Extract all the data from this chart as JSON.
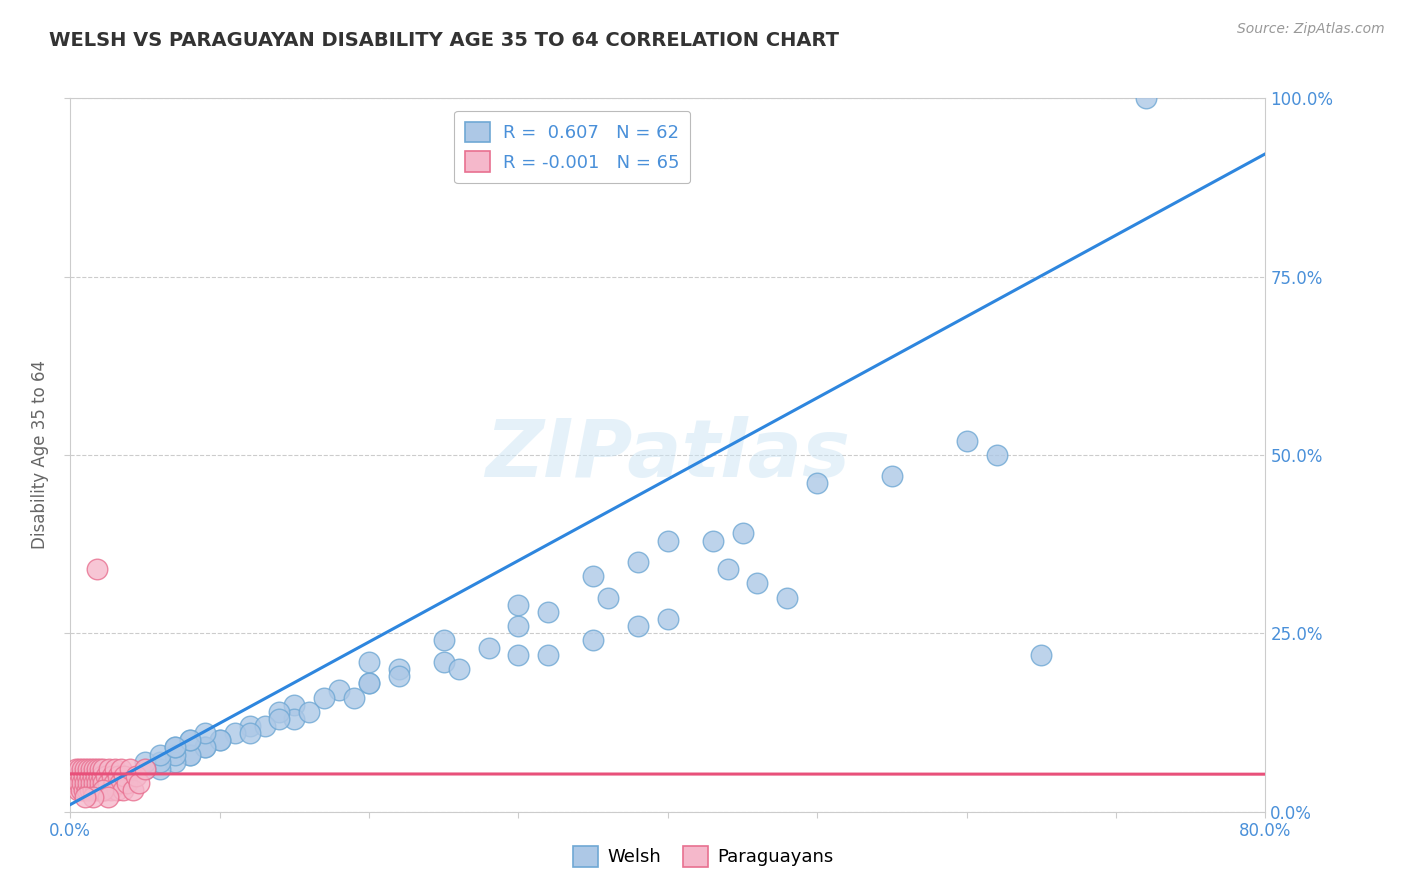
{
  "title": "WELSH VS PARAGUAYAN DISABILITY AGE 35 TO 64 CORRELATION CHART",
  "source_text": "Source: ZipAtlas.com",
  "ylabel": "Disability Age 35 to 64",
  "xlim": [
    0.0,
    0.8
  ],
  "ylim": [
    0.0,
    1.0
  ],
  "xtick_labels": [
    "0.0%",
    "",
    "",
    "",
    "",
    "",
    "",
    "",
    "80.0%"
  ],
  "xtick_values": [
    0.0,
    0.1,
    0.2,
    0.3,
    0.4,
    0.5,
    0.6,
    0.7,
    0.8
  ],
  "ytick_labels": [
    "100.0%",
    "75.0%",
    "50.0%",
    "25.0%",
    "0.0%"
  ],
  "ytick_values": [
    1.0,
    0.75,
    0.5,
    0.25,
    0.0
  ],
  "welsh_color": "#adc8e6",
  "paraguayan_color": "#f5b8cb",
  "welsh_edge_color": "#6fa8d4",
  "paraguayan_edge_color": "#e87090",
  "trendline_welsh_color": "#2e86de",
  "trendline_paraguayan_color": "#e8507a",
  "legend_welsh_label": "R =  0.607   N = 62",
  "legend_paraguayan_label": "R = -0.001   N = 65",
  "legend_welsh_color": "#adc8e6",
  "legend_paraguayan_color": "#f5b8cb",
  "bottom_legend_welsh": "Welsh",
  "bottom_legend_paraguayan": "Paraguayans",
  "watermark": "ZIPatlas",
  "welsh_x": [
    0.38,
    0.43,
    0.44,
    0.46,
    0.48,
    0.32,
    0.36,
    0.38,
    0.4,
    0.3,
    0.28,
    0.35,
    0.32,
    0.3,
    0.22,
    0.25,
    0.26,
    0.2,
    0.22,
    0.18,
    0.2,
    0.15,
    0.17,
    0.19,
    0.15,
    0.14,
    0.16,
    0.12,
    0.13,
    0.14,
    0.11,
    0.1,
    0.12,
    0.09,
    0.1,
    0.08,
    0.09,
    0.08,
    0.07,
    0.06,
    0.07,
    0.06,
    0.05,
    0.05,
    0.06,
    0.07,
    0.08,
    0.09,
    0.08,
    0.07,
    0.6,
    0.62,
    0.55,
    0.5,
    0.45,
    0.4,
    0.35,
    0.3,
    0.25,
    0.2,
    0.72,
    0.65
  ],
  "welsh_y": [
    0.35,
    0.38,
    0.34,
    0.32,
    0.3,
    0.28,
    0.3,
    0.26,
    0.27,
    0.26,
    0.23,
    0.24,
    0.22,
    0.22,
    0.2,
    0.21,
    0.2,
    0.18,
    0.19,
    0.17,
    0.18,
    0.15,
    0.16,
    0.16,
    0.13,
    0.14,
    0.14,
    0.12,
    0.12,
    0.13,
    0.11,
    0.1,
    0.11,
    0.09,
    0.1,
    0.08,
    0.09,
    0.08,
    0.07,
    0.06,
    0.08,
    0.07,
    0.06,
    0.07,
    0.08,
    0.09,
    0.1,
    0.11,
    0.1,
    0.09,
    0.52,
    0.5,
    0.47,
    0.46,
    0.39,
    0.38,
    0.33,
    0.29,
    0.24,
    0.21,
    1.0,
    0.22
  ],
  "paraguayan_x": [
    0.002,
    0.003,
    0.004,
    0.004,
    0.005,
    0.005,
    0.006,
    0.006,
    0.007,
    0.007,
    0.008,
    0.008,
    0.009,
    0.009,
    0.01,
    0.01,
    0.011,
    0.011,
    0.012,
    0.012,
    0.013,
    0.013,
    0.014,
    0.014,
    0.015,
    0.015,
    0.016,
    0.016,
    0.017,
    0.017,
    0.018,
    0.018,
    0.019,
    0.019,
    0.02,
    0.02,
    0.021,
    0.021,
    0.022,
    0.022,
    0.023,
    0.024,
    0.025,
    0.026,
    0.027,
    0.028,
    0.029,
    0.03,
    0.031,
    0.032,
    0.033,
    0.034,
    0.035,
    0.036,
    0.038,
    0.04,
    0.042,
    0.044,
    0.046,
    0.05,
    0.018,
    0.022,
    0.025,
    0.015,
    0.01
  ],
  "paraguayan_y": [
    0.04,
    0.05,
    0.04,
    0.06,
    0.03,
    0.05,
    0.04,
    0.06,
    0.03,
    0.05,
    0.04,
    0.06,
    0.03,
    0.05,
    0.04,
    0.06,
    0.03,
    0.05,
    0.04,
    0.06,
    0.03,
    0.05,
    0.04,
    0.06,
    0.03,
    0.05,
    0.04,
    0.06,
    0.03,
    0.05,
    0.04,
    0.06,
    0.03,
    0.05,
    0.04,
    0.06,
    0.03,
    0.05,
    0.04,
    0.06,
    0.03,
    0.05,
    0.04,
    0.06,
    0.03,
    0.05,
    0.04,
    0.06,
    0.03,
    0.05,
    0.04,
    0.06,
    0.03,
    0.05,
    0.04,
    0.06,
    0.03,
    0.05,
    0.04,
    0.06,
    0.34,
    0.03,
    0.02,
    0.02,
    0.02
  ],
  "background_color": "#ffffff",
  "plot_bg_color": "#ffffff",
  "grid_color": "#cccccc",
  "title_color": "#333333",
  "axis_label_color": "#666666",
  "tick_color": "#4a90d9",
  "source_color": "#999999"
}
